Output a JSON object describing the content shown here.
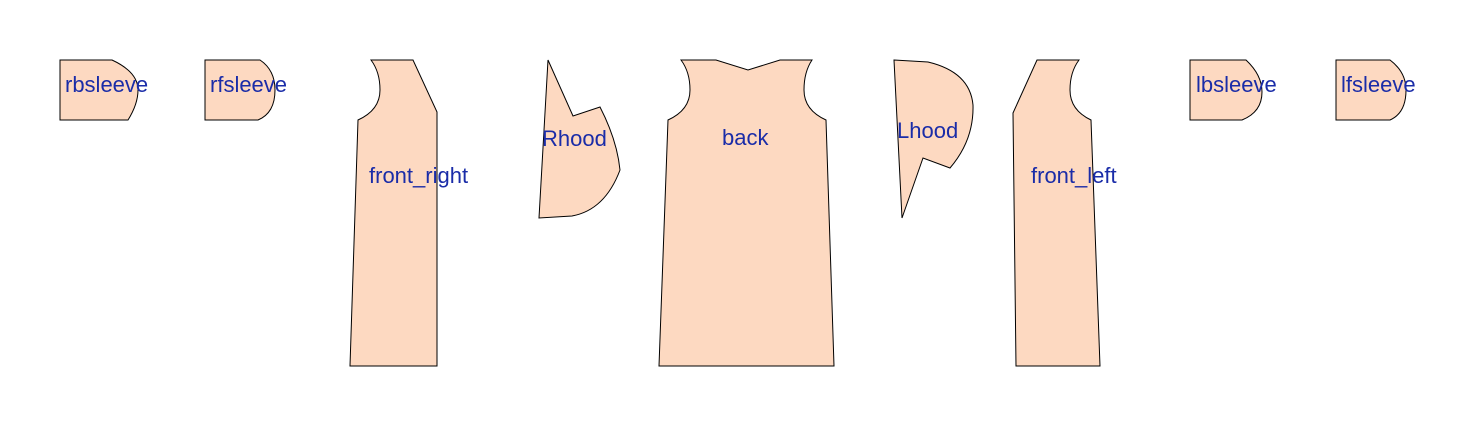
{
  "colors": {
    "background": "#ffffff",
    "piece_fill": "#fdd9c1",
    "piece_stroke": "#000000",
    "label": "#1a2ca8"
  },
  "pieces": [
    {
      "id": "rbsleeve",
      "label": "rbsleeve"
    },
    {
      "id": "rfsleeve",
      "label": "rfsleeve"
    },
    {
      "id": "front_right",
      "label": "front_right"
    },
    {
      "id": "rhood",
      "label": "Rhood"
    },
    {
      "id": "back",
      "label": "back"
    },
    {
      "id": "lhood",
      "label": "Lhood"
    },
    {
      "id": "front_left",
      "label": "front_left"
    },
    {
      "id": "lbsleeve",
      "label": "lbsleeve"
    },
    {
      "id": "lfsleeve",
      "label": "lfsleeve"
    }
  ]
}
